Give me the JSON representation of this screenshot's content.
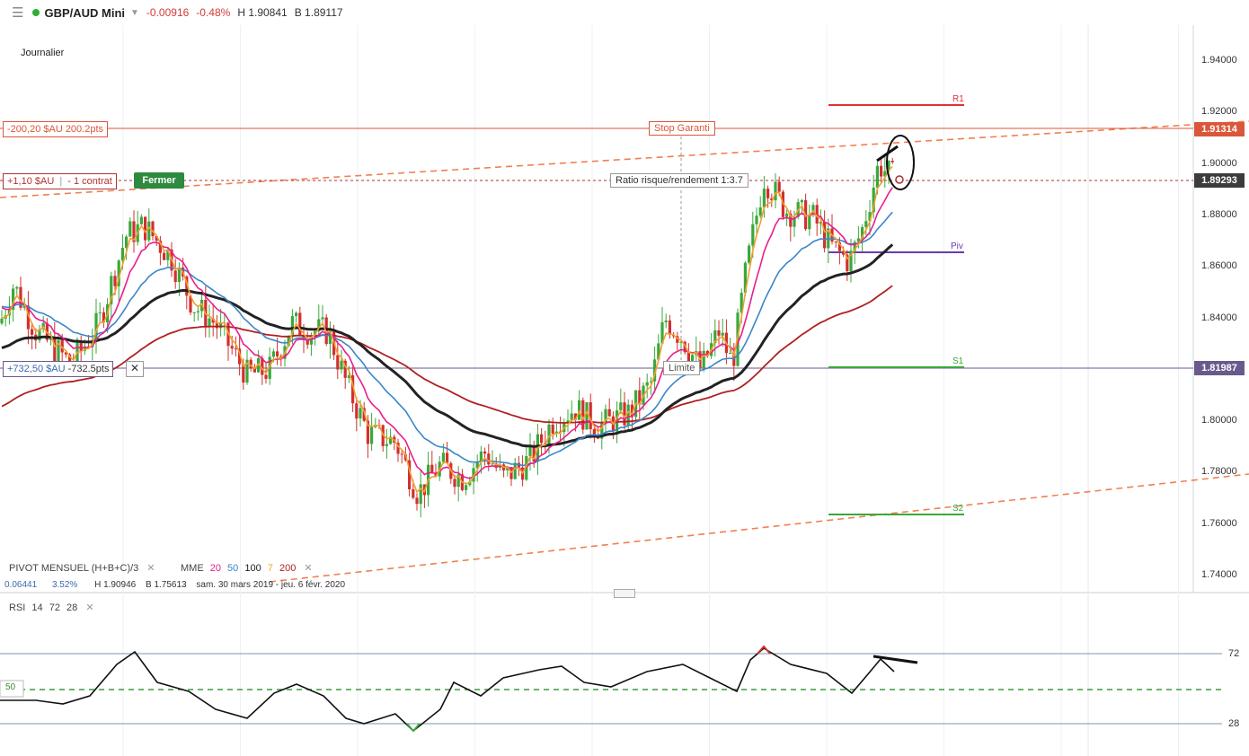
{
  "header": {
    "menu_icon": "hamburger-menu-icon",
    "status_color": "#2eae34",
    "symbol": "GBP/AUD Mini",
    "change": "-0.00916",
    "change_pct": "-0.48%",
    "high": "H 1.90841",
    "low": "B 1.89117"
  },
  "period_label": "Journalier",
  "price_axis": {
    "ticks": [
      "1.94000",
      "1.92000",
      "1.90000",
      "1.88000",
      "1.86000",
      "1.84000",
      "1.82000",
      "1.80000",
      "1.78000",
      "1.76000",
      "1.74000"
    ],
    "current_price": "1.89293",
    "stop_price": "1.91314",
    "limit_price": "1.81987"
  },
  "positions": {
    "stop_text": "-200,20 $AU 200.2pts",
    "open_pnl": "+1,10 $AU",
    "contracts": "- 1 contrat",
    "close_label": "Fermer",
    "limit_text_a": "+732,50 $AU",
    "limit_text_b": "-732.5pts",
    "close_x": "✕"
  },
  "annotations": {
    "stop_label": "Stop Garanti",
    "ratio_label": "Ratio risque/rendement 1:3.7",
    "limit_label": "Limite"
  },
  "pivots": {
    "r1": "R1",
    "piv": "Piv",
    "s1": "S1",
    "s2": "S2"
  },
  "indicators": {
    "pivot_title": "PIVOT",
    "pivot_type": "MENSUEL",
    "pivot_formula": "(H+B+C)/3",
    "mme_label": "MME",
    "mme_periods": [
      "20",
      "50",
      "100",
      "7",
      "200"
    ],
    "mme_colors": [
      "#e91e8c",
      "#3a86c8",
      "#222222",
      "#f2a030",
      "#b02020"
    ],
    "close_x": "✕",
    "stats_a": "0.06441",
    "stats_b": "3.52%",
    "stats_h": "H 1.90946",
    "stats_b2": "B 1.75613",
    "stats_range": "sam. 30 mars 2019 - jeu. 6 févr. 2020"
  },
  "rsi": {
    "label": "RSI",
    "p1": "14",
    "p2": "72",
    "p3": "28",
    "tick_high": "72",
    "tick_low": "28",
    "mid": "50"
  },
  "colors": {
    "up": "#3aa83a",
    "down": "#d32f2f",
    "stop": "#d9573a",
    "trend": "#f08050",
    "current": "#b03030",
    "limit_tag": "#6a5a8c",
    "r1": "#e0303a",
    "piv": "#6a3ab0",
    "s_line": "#3aa83a"
  }
}
